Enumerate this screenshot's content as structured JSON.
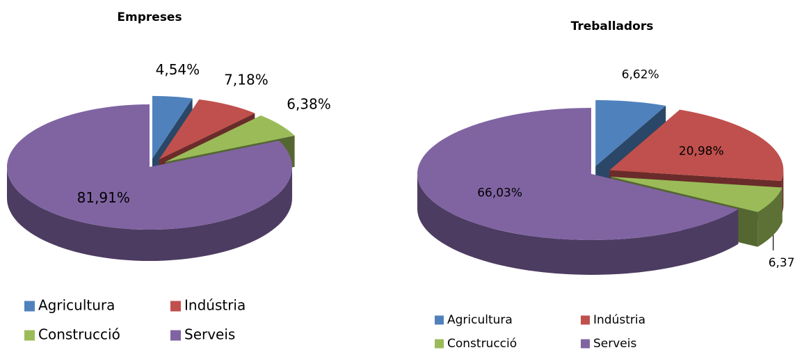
{
  "chart_data": [
    {
      "type": "pie",
      "title": "Empreses",
      "categories": [
        "Agricultura",
        "Indústria",
        "Construcció",
        "Serveis"
      ],
      "values": [
        4.54,
        7.18,
        6.38,
        81.91
      ],
      "value_labels": [
        "4,54%",
        "7,18%",
        "6,38%",
        "81,91%"
      ],
      "colors": [
        "#4f81bd",
        "#c0504d",
        "#9bbb59",
        "#8064a2"
      ]
    },
    {
      "type": "pie",
      "title": "Treballadors",
      "categories": [
        "Agricultura",
        "Indústria",
        "Construcció",
        "Serveis"
      ],
      "values": [
        6.62,
        20.98,
        6.37,
        66.03
      ],
      "value_labels": [
        "6,62%",
        "20,98%",
        "6,37%",
        "66,03%"
      ],
      "colors": [
        "#4f81bd",
        "#c0504d",
        "#9bbb59",
        "#8064a2"
      ]
    }
  ]
}
